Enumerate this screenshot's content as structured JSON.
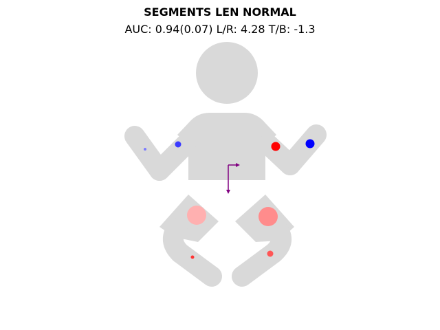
{
  "chart_data": {
    "type": "scatter",
    "title": "SEGMENTS LEN NORMAL",
    "subtitle": "AUC: 0.94(0.07) L/R: 4.28 T/B: -1.3",
    "colors": {
      "body": "#d9d9d9",
      "arrow": "#800080"
    },
    "markers": [
      {
        "segment": "left_forearm",
        "color": "#7b7bff",
        "size": 4
      },
      {
        "segment": "left_upperarm",
        "color": "#3b3bff",
        "size": 9
      },
      {
        "segment": "right_upperarm",
        "color": "#ff0000",
        "size": 13
      },
      {
        "segment": "right_forearm",
        "color": "#0000ff",
        "size": 13
      },
      {
        "segment": "left_thigh",
        "color": "#ffb0b0",
        "size": 28
      },
      {
        "segment": "right_thigh",
        "color": "#ff8c8c",
        "size": 28
      },
      {
        "segment": "left_shin",
        "color": "#ff3333",
        "size": 5
      },
      {
        "segment": "right_shin",
        "color": "#ff5555",
        "size": 9
      }
    ],
    "arrows": [
      {
        "direction": "right",
        "meaning": "L/R"
      },
      {
        "direction": "down",
        "meaning": "T/B"
      }
    ]
  }
}
